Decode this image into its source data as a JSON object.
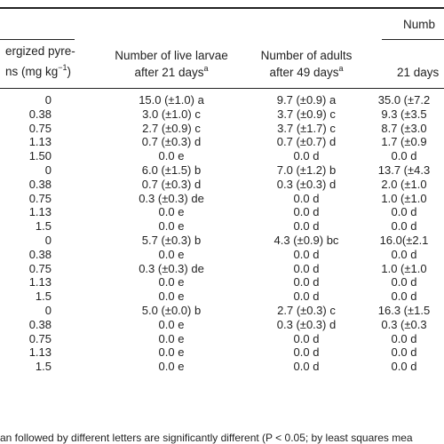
{
  "header": {
    "span_label": "Numb",
    "col0_line1": "ergized pyre-",
    "col0_line2a": "ns (mg kg",
    "col0_line2_sup": "−1",
    "col0_line2b": ")",
    "col1_line1": "Number of live larvae",
    "col1_line2": "after 21 days",
    "col1_sup": "a",
    "col2_line1": "Number of adults",
    "col2_line2": "after 49 days",
    "col2_sup": "a",
    "col3_line2": "21 days"
  },
  "rows": [
    [
      "0",
      "15.0 (±1.0) a",
      "9.7 (±0.9) a",
      "35.0 (±7.2"
    ],
    [
      "0.38",
      "3.0 (±1.0) c",
      "3.7 (±0.9) c",
      "9.3 (±3.5"
    ],
    [
      "0.75",
      "2.7 (±0.9) c",
      "3.7 (±1.7) c",
      "8.7 (±3.0"
    ],
    [
      "1.13",
      "0.7 (±0.3) d",
      "0.7 (±0.7) d",
      "1.7 (±0.9"
    ],
    [
      "1.50",
      "0.0 e",
      "0.0 d",
      "0.0 d"
    ],
    [
      "0",
      "6.0 (±1.5) b",
      "7.0 (±1.2) b",
      "13.7 (±4.3"
    ],
    [
      "0.38",
      "0.7 (±0.3) d",
      "0.3 (±0.3) d",
      "2.0 (±1.0"
    ],
    [
      "0.75",
      "0.3 (±0.3) de",
      "0.0 d",
      "1.0 (±1.0"
    ],
    [
      "1.13",
      "0.0 e",
      "0.0 d",
      "0.0 d"
    ],
    [
      "1.5",
      "0.0 e",
      "0.0 d",
      "0.0 d"
    ],
    [
      "0",
      "5.7 (±0.3) b",
      "4.3 (±0.9) bc",
      "16.0(±2.1"
    ],
    [
      "0.38",
      "0.0 e",
      "0.0 d",
      "0.0 d"
    ],
    [
      "0.75",
      "0.3 (±0.3) de",
      "0.0 d",
      "1.0 (±1.0"
    ],
    [
      "1.13",
      "0.0 e",
      "0.0 d",
      "0.0 d"
    ],
    [
      "1.5",
      "0.0 e",
      "0.0 d",
      "0.0 d"
    ],
    [
      "0",
      "5.0 (±0.0) b",
      "2.7 (±0.3) c",
      "16.3 (±1.5"
    ],
    [
      "0.38",
      "0.0 e",
      "0.3 (±0.3) d",
      "0.3 (±0.3"
    ],
    [
      "0.75",
      "0.0 e",
      "0.0 d",
      "0.0 d"
    ],
    [
      "1.13",
      "0.0 e",
      "0.0 d",
      "0.0 d"
    ],
    [
      "1.5",
      "0.0 e",
      "0.0 d",
      "0.0 d"
    ]
  ],
  "footnote": "an followed by different letters are significantly different (P < 0.05; by least squares mea"
}
